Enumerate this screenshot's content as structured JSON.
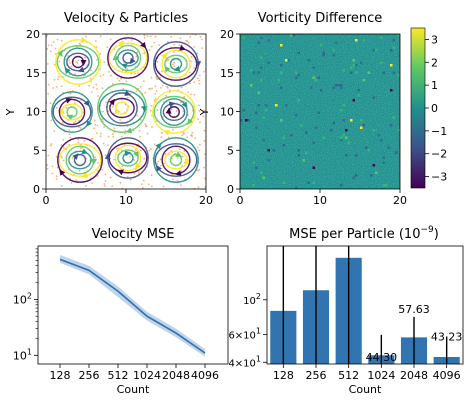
{
  "figure": {
    "titles": {
      "velocity": "Velocity & Particles",
      "vorticity": "Vorticity Difference",
      "mse": "Velocity MSE",
      "particle_mse": "MSE per Particle (10",
      "particle_mse_exp": "−9",
      "particle_mse_close": ")"
    },
    "ylabel_y": "Y",
    "xlabel_count": "Count",
    "colormap": "viridis",
    "colors": {
      "line": "#2f6fad",
      "band": "#a9c4e2",
      "bar": "#3274b0",
      "streamlines": [
        "#440154",
        "#3b528b",
        "#21908d",
        "#5dc962",
        "#fde725"
      ],
      "particles": "#f4a261"
    }
  },
  "chart_data": [
    {
      "type": "streamplot",
      "title": "Velocity & Particles",
      "ylabel": "Y",
      "xlim": [
        0,
        20
      ],
      "ylim": [
        0,
        20
      ],
      "xticks": [
        "0",
        "10",
        "20"
      ],
      "yticks": [
        "0",
        "5",
        "10",
        "15",
        "20"
      ]
    },
    {
      "type": "heatmap",
      "title": "Vorticity Difference",
      "xlim": [
        0,
        20
      ],
      "ylim": [
        0,
        20
      ],
      "xticks": [
        "0",
        "10",
        "20"
      ],
      "yticks": [
        "0",
        "5",
        "10",
        "15",
        "20"
      ],
      "colorbar": {
        "range": [
          -3.5,
          3.5
        ],
        "ticks": [
          "3",
          "2",
          "1",
          "0",
          "−1",
          "−2",
          "−3"
        ],
        "values": [
          3,
          2,
          1,
          0,
          -1,
          -2,
          -3
        ]
      }
    },
    {
      "type": "line",
      "title": "Velocity MSE",
      "xlabel": "Count",
      "categories": [
        "128",
        "256",
        "512",
        "1024",
        "2048",
        "4096"
      ],
      "values": [
        520,
        330,
        140,
        50,
        25,
        11
      ],
      "band_low": [
        450,
        280,
        110,
        42,
        21,
        9.5
      ],
      "band_high": [
        620,
        400,
        170,
        60,
        30,
        13
      ],
      "yscale": "log",
      "ylim": [
        7,
        900
      ],
      "yticks": [
        {
          "base": "10",
          "exp": "1",
          "value": 10
        },
        {
          "base": "10",
          "exp": "2",
          "value": 100
        }
      ]
    },
    {
      "type": "bar",
      "title": "MSE per Particle (10^-9)",
      "xlabel": "Count",
      "categories": [
        "128",
        "256",
        "512",
        "1024",
        "2048",
        "4096"
      ],
      "values": [
        85,
        115,
        185,
        44.3,
        57.63,
        43.23
      ],
      "labels": [
        "",
        "",
        "",
        "44.30",
        "57.63",
        "43.23"
      ],
      "yscale": "log",
      "ylim": [
        39,
        220
      ],
      "yticks": [
        {
          "base": "4×10",
          "exp": "1",
          "value": 40
        },
        {
          "base": "6×10",
          "exp": "1",
          "value": 60
        },
        {
          "base": "10",
          "exp": "2",
          "value": 100
        }
      ]
    }
  ]
}
